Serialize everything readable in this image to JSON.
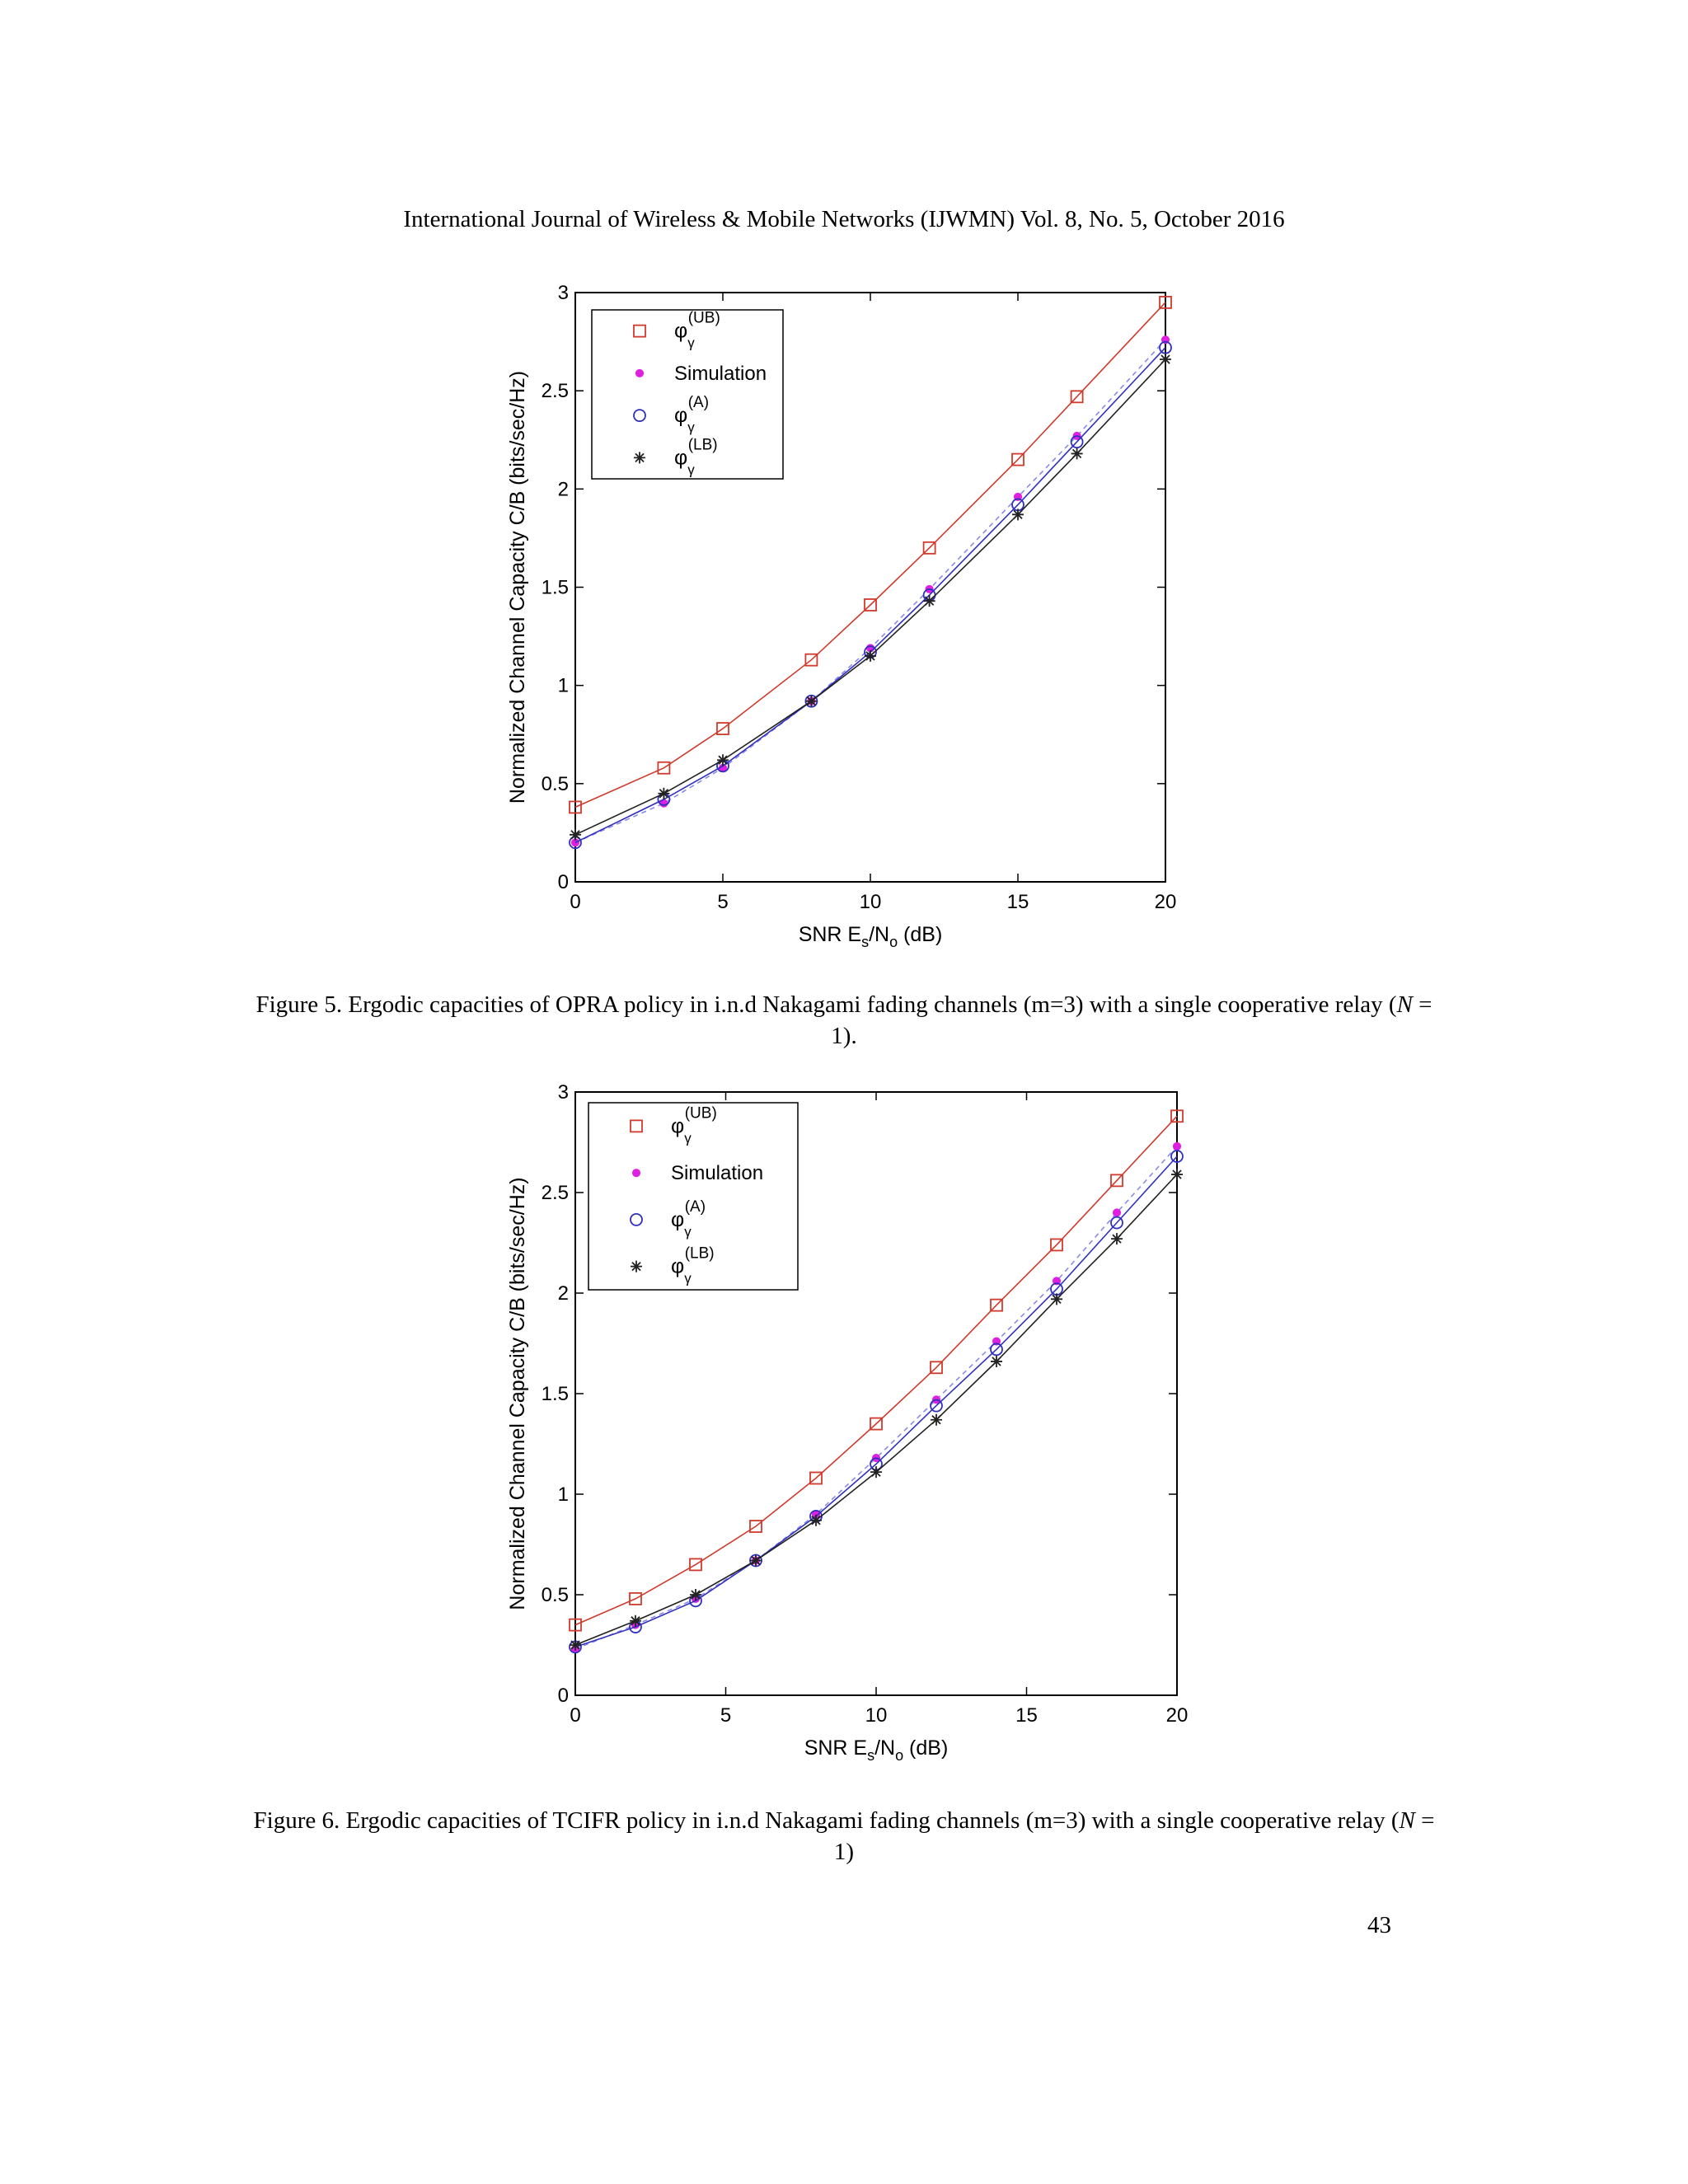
{
  "header": {
    "journal_line": "International Journal of Wireless & Mobile Networks (IJWMN) Vol. 8, No. 5, October 2016"
  },
  "figures": [
    {
      "caption": {
        "before": "Figure 5. Ergodic capacities of OPRA policy in i.n.d Nakagami fading channels (m=3) with a single cooperative relay (",
        "italic": "N",
        "after": " = 1)."
      }
    },
    {
      "caption": {
        "before": "Figure 6. Ergodic capacities of TCIFR policy in i.n.d Nakagami fading channels (m=3) with a single cooperative relay (",
        "italic": "N",
        "after": " = 1)"
      }
    }
  ],
  "chart_data": [
    {
      "type": "line",
      "xlabel": "SNR Es/No (dB)",
      "xlabel_parts": {
        "a": "SNR E",
        "sub1": "s",
        "b": "/N",
        "sub2": "o",
        "c": " (dB)"
      },
      "ylabel": "Normalized Channel Capacity C/B (bits/sec/Hz)",
      "xlim": [
        0,
        20
      ],
      "ylim": [
        0,
        3
      ],
      "xticks": [
        0,
        5,
        10,
        15,
        20
      ],
      "yticks": [
        0,
        0.5,
        1,
        1.5,
        2,
        2.5,
        3
      ],
      "grid": false,
      "legend": "top-left",
      "series": [
        {
          "name": "φγ(UB)",
          "sym": "φ",
          "sub": "γ",
          "sup": "(UB)",
          "marker": "square",
          "color": "#d03a2c",
          "line": "solid",
          "x": [
            0,
            3,
            5,
            8,
            10,
            12,
            15,
            17,
            20
          ],
          "y": [
            0.38,
            0.58,
            0.78,
            1.13,
            1.41,
            1.7,
            2.15,
            2.47,
            2.95
          ]
        },
        {
          "name": "Simulation",
          "marker": "dot",
          "color": "#e020e0",
          "line": "dashed",
          "line_color": "#8a8ae8",
          "x": [
            0,
            3,
            5,
            8,
            10,
            12,
            15,
            17,
            20
          ],
          "y": [
            0.2,
            0.4,
            0.58,
            0.92,
            1.19,
            1.49,
            1.96,
            2.27,
            2.76
          ]
        },
        {
          "name": "φγ(A)",
          "sym": "φ",
          "sub": "γ",
          "sup": "(A)",
          "marker": "circle",
          "color": "#3030c0",
          "line": "solid",
          "x": [
            0,
            3,
            5,
            8,
            10,
            12,
            15,
            17,
            20
          ],
          "y": [
            0.2,
            0.42,
            0.59,
            0.92,
            1.17,
            1.46,
            1.92,
            2.24,
            2.72
          ]
        },
        {
          "name": "φγ(LB)",
          "sym": "φ",
          "sub": "γ",
          "sup": "(LB)",
          "marker": "star",
          "color": "#222222",
          "line": "solid",
          "x": [
            0,
            3,
            5,
            8,
            10,
            12,
            15,
            17,
            20
          ],
          "y": [
            0.24,
            0.45,
            0.62,
            0.92,
            1.15,
            1.43,
            1.87,
            2.18,
            2.66
          ]
        }
      ]
    },
    {
      "type": "line",
      "xlabel": "SNR Es/No (dB)",
      "xlabel_parts": {
        "a": "SNR E",
        "sub1": "s",
        "b": "/N",
        "sub2": "o",
        "c": " (dB)"
      },
      "ylabel": "Normalized Channel Capacity C/B (bits/sec/Hz)",
      "xlim": [
        0,
        20
      ],
      "ylim": [
        0,
        3
      ],
      "xticks": [
        0,
        5,
        10,
        15,
        20
      ],
      "yticks": [
        0,
        0.5,
        1,
        1.5,
        2,
        2.5,
        3
      ],
      "grid": false,
      "legend": "top-left",
      "series": [
        {
          "name": "φγ(UB)",
          "sym": "φ",
          "sub": "γ",
          "sup": "(UB)",
          "marker": "square",
          "color": "#d03a2c",
          "line": "solid",
          "x": [
            0,
            2,
            4,
            6,
            8,
            10,
            12,
            14,
            16,
            18,
            20
          ],
          "y": [
            0.35,
            0.48,
            0.65,
            0.84,
            1.08,
            1.35,
            1.63,
            1.94,
            2.24,
            2.56,
            2.88
          ]
        },
        {
          "name": "Simulation",
          "marker": "dot",
          "color": "#e020e0",
          "line": "dashed",
          "line_color": "#8a8ae8",
          "x": [
            0,
            2,
            4,
            6,
            8,
            10,
            12,
            14,
            16,
            18,
            20
          ],
          "y": [
            0.23,
            0.35,
            0.48,
            0.67,
            0.9,
            1.18,
            1.47,
            1.76,
            2.06,
            2.4,
            2.73
          ]
        },
        {
          "name": "φγ(A)",
          "sym": "φ",
          "sub": "γ",
          "sup": "(A)",
          "marker": "circle",
          "color": "#3030c0",
          "line": "solid",
          "x": [
            0,
            2,
            4,
            6,
            8,
            10,
            12,
            14,
            16,
            18,
            20
          ],
          "y": [
            0.24,
            0.34,
            0.47,
            0.67,
            0.89,
            1.15,
            1.44,
            1.72,
            2.02,
            2.35,
            2.68
          ]
        },
        {
          "name": "φγ(LB)",
          "sym": "φ",
          "sub": "γ",
          "sup": "(LB)",
          "marker": "star",
          "color": "#222222",
          "line": "solid",
          "x": [
            0,
            2,
            4,
            6,
            8,
            10,
            12,
            14,
            16,
            18,
            20
          ],
          "y": [
            0.25,
            0.37,
            0.5,
            0.67,
            0.87,
            1.11,
            1.37,
            1.66,
            1.97,
            2.27,
            2.59
          ]
        }
      ]
    }
  ],
  "page": {
    "number": "43"
  }
}
